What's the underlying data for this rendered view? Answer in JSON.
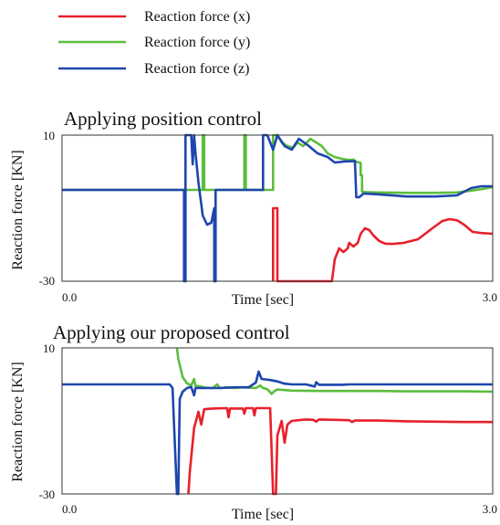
{
  "legend": [
    {
      "label": "Reaction force (x)",
      "color": "#e8202a"
    },
    {
      "label": "Reaction force (y)",
      "color": "#5cbd3c"
    },
    {
      "label": "Reaction force (z)",
      "color": "#1d46ad"
    }
  ],
  "chart_data": [
    {
      "type": "line",
      "title": "Applying position control",
      "xlabel": "Time [sec]",
      "ylabel": "Reaction force [KN]",
      "xlim": [
        0.0,
        3.0
      ],
      "ylim": [
        -30,
        10
      ],
      "xtick_labels": [
        "0.0",
        "3.0"
      ],
      "ytick_labels": [
        "10",
        "-30"
      ],
      "grid": false,
      "series": [
        {
          "name": "Reaction force (x)",
          "color": "#e8202a",
          "points": [
            [
              1.47,
              -30
            ],
            [
              1.47,
              -10
            ],
            [
              1.5,
              -10
            ],
            [
              1.5,
              -30
            ],
            [
              1.88,
              -30
            ],
            [
              1.9,
              -24
            ],
            [
              1.93,
              -21
            ],
            [
              1.96,
              -22
            ],
            [
              1.99,
              -21
            ],
            [
              2.0,
              -19.5
            ],
            [
              2.03,
              -20.5
            ],
            [
              2.06,
              -19.5
            ],
            [
              2.08,
              -17
            ],
            [
              2.11,
              -15.5
            ],
            [
              2.14,
              -16
            ],
            [
              2.17,
              -17.5
            ],
            [
              2.21,
              -19
            ],
            [
              2.25,
              -19.7
            ],
            [
              2.3,
              -19.8
            ],
            [
              2.38,
              -19.5
            ],
            [
              2.48,
              -18.5
            ],
            [
              2.58,
              -15.5
            ],
            [
              2.65,
              -13.5
            ],
            [
              2.7,
              -13
            ],
            [
              2.75,
              -13.3
            ],
            [
              2.8,
              -14.5
            ],
            [
              2.86,
              -16.5
            ],
            [
              2.92,
              -16.8
            ],
            [
              3.0,
              -17
            ]
          ]
        },
        {
          "name": "Reaction force (y)",
          "color": "#5cbd3c",
          "points": [
            [
              0.0,
              -5
            ],
            [
              0.98,
              -5
            ],
            [
              0.98,
              10
            ],
            [
              0.99,
              10
            ],
            [
              0.99,
              -5
            ],
            [
              1.27,
              -5
            ],
            [
              1.27,
              10
            ],
            [
              1.28,
              10
            ],
            [
              1.28,
              -5
            ],
            [
              1.47,
              -5
            ],
            [
              1.47,
              10
            ],
            [
              1.5,
              10
            ],
            [
              1.53,
              8
            ],
            [
              1.57,
              7
            ],
            [
              1.61,
              6.5
            ],
            [
              1.64,
              8
            ],
            [
              1.68,
              7
            ],
            [
              1.73,
              9
            ],
            [
              1.77,
              8
            ],
            [
              1.81,
              7
            ],
            [
              1.85,
              5
            ],
            [
              1.9,
              4
            ],
            [
              1.95,
              3.5
            ],
            [
              2.0,
              3.2
            ],
            [
              2.03,
              3.3
            ],
            [
              2.05,
              2.7
            ],
            [
              2.08,
              2.4
            ],
            [
              2.08,
              -1
            ],
            [
              2.09,
              -1
            ],
            [
              2.09,
              -5.5
            ],
            [
              2.12,
              -5.6
            ],
            [
              2.2,
              -5.7
            ],
            [
              2.4,
              -5.8
            ],
            [
              2.6,
              -5.8
            ],
            [
              2.75,
              -5.7
            ],
            [
              2.85,
              -5.2
            ],
            [
              2.92,
              -4.8
            ],
            [
              3.0,
              -4.2
            ]
          ]
        },
        {
          "name": "Reaction force (z)",
          "color": "#1d46ad",
          "points": [
            [
              0.0,
              -5
            ],
            [
              0.85,
              -5
            ],
            [
              0.85,
              -30
            ],
            [
              0.86,
              -30
            ],
            [
              0.86,
              10
            ],
            [
              0.9,
              10
            ],
            [
              0.91,
              2
            ],
            [
              0.92,
              10
            ],
            [
              0.93,
              5
            ],
            [
              0.95,
              -3
            ],
            [
              0.98,
              -12
            ],
            [
              1.01,
              -14.5
            ],
            [
              1.04,
              -14
            ],
            [
              1.06,
              -10
            ],
            [
              1.06,
              -30
            ],
            [
              1.07,
              -30
            ],
            [
              1.07,
              -5
            ],
            [
              1.4,
              -5
            ],
            [
              1.4,
              10
            ],
            [
              1.43,
              10
            ],
            [
              1.47,
              6
            ],
            [
              1.5,
              10
            ],
            [
              1.55,
              7
            ],
            [
              1.6,
              6
            ],
            [
              1.65,
              9
            ],
            [
              1.72,
              7
            ],
            [
              1.78,
              5
            ],
            [
              1.85,
              4
            ],
            [
              1.9,
              2.5
            ],
            [
              1.97,
              2.8
            ],
            [
              2.04,
              2.9
            ],
            [
              2.05,
              -7
            ],
            [
              2.07,
              -7
            ],
            [
              2.1,
              -6
            ],
            [
              2.2,
              -6.2
            ],
            [
              2.4,
              -6.8
            ],
            [
              2.6,
              -6.8
            ],
            [
              2.75,
              -6.5
            ],
            [
              2.85,
              -4.5
            ],
            [
              2.92,
              -4
            ],
            [
              3.0,
              -4
            ]
          ]
        }
      ]
    },
    {
      "type": "line",
      "title": "Applying our proposed control",
      "xlabel": "Time [sec]",
      "ylabel": "Reaction force [KN]",
      "xlim": [
        0.0,
        3.0
      ],
      "ylim": [
        -30,
        10
      ],
      "xtick_labels": [
        "0.0",
        "3.0"
      ],
      "ytick_labels": [
        "10",
        "-30"
      ],
      "grid": false,
      "series": [
        {
          "name": "Reaction force (x)",
          "color": "#e8202a",
          "points": [
            [
              0.88,
              -30
            ],
            [
              0.89,
              -24
            ],
            [
              0.92,
              -12
            ],
            [
              0.95,
              -7.5
            ],
            [
              0.97,
              -11
            ],
            [
              0.99,
              -6.8
            ],
            [
              1.05,
              -6.6
            ],
            [
              1.15,
              -6.5
            ],
            [
              1.16,
              -9
            ],
            [
              1.17,
              -6.6
            ],
            [
              1.26,
              -6.6
            ],
            [
              1.27,
              -8
            ],
            [
              1.28,
              -6.5
            ],
            [
              1.33,
              -6.5
            ],
            [
              1.34,
              -8.5
            ],
            [
              1.35,
              -6.5
            ],
            [
              1.45,
              -6.5
            ],
            [
              1.47,
              -30
            ],
            [
              1.49,
              -30
            ],
            [
              1.5,
              -14
            ],
            [
              1.53,
              -10
            ],
            [
              1.55,
              -16
            ],
            [
              1.57,
              -11
            ],
            [
              1.6,
              -10
            ],
            [
              1.65,
              -9.8
            ],
            [
              1.7,
              -9.6
            ],
            [
              1.75,
              -9.7
            ],
            [
              1.77,
              -10.2
            ],
            [
              1.79,
              -9.6
            ],
            [
              1.9,
              -9.7
            ],
            [
              2.0,
              -9.8
            ],
            [
              2.02,
              -10.3
            ],
            [
              2.04,
              -9.9
            ],
            [
              2.2,
              -9.9
            ],
            [
              2.4,
              -10.1
            ],
            [
              2.6,
              -10.2
            ],
            [
              2.8,
              -10.3
            ],
            [
              3.0,
              -10.3
            ]
          ]
        },
        {
          "name": "Reaction force (y)",
          "color": "#5cbd3c",
          "points": [
            [
              0.8,
              10
            ],
            [
              0.81,
              7
            ],
            [
              0.84,
              2
            ],
            [
              0.87,
              0.3
            ],
            [
              0.9,
              -0.3
            ],
            [
              0.92,
              1.5
            ],
            [
              0.93,
              -0.4
            ],
            [
              0.97,
              -0.6
            ],
            [
              1.0,
              -0.9
            ],
            [
              1.05,
              -1.0
            ],
            [
              1.08,
              0
            ],
            [
              1.1,
              -1.0
            ],
            [
              1.15,
              -0.8
            ],
            [
              1.2,
              -1.0
            ],
            [
              1.25,
              -0.8
            ],
            [
              1.35,
              -1.0
            ],
            [
              1.38,
              -0.3
            ],
            [
              1.4,
              -1.0
            ],
            [
              1.43,
              -1.3
            ],
            [
              1.46,
              -2.6
            ],
            [
              1.48,
              -1.8
            ],
            [
              1.5,
              -1.4
            ],
            [
              1.6,
              -1.7
            ],
            [
              1.8,
              -1.8
            ],
            [
              2.0,
              -1.8
            ],
            [
              2.2,
              -1.8
            ],
            [
              2.4,
              -1.9
            ],
            [
              2.6,
              -1.9
            ],
            [
              2.8,
              -1.9
            ],
            [
              3.0,
              -2.0
            ]
          ]
        },
        {
          "name": "Reaction force (z)",
          "color": "#1d46ad",
          "points": [
            [
              0.0,
              0
            ],
            [
              0.75,
              0
            ],
            [
              0.77,
              -1
            ],
            [
              0.8,
              -30
            ],
            [
              0.81,
              -30
            ],
            [
              0.82,
              -4
            ],
            [
              0.84,
              -2
            ],
            [
              0.87,
              -1
            ],
            [
              0.9,
              -0.7
            ],
            [
              0.92,
              -3
            ],
            [
              0.93,
              -1
            ],
            [
              1.0,
              -1
            ],
            [
              1.1,
              -1
            ],
            [
              1.2,
              -0.8
            ],
            [
              1.3,
              -0.8
            ],
            [
              1.35,
              0.5
            ],
            [
              1.37,
              3.5
            ],
            [
              1.39,
              1.5
            ],
            [
              1.45,
              1.2
            ],
            [
              1.5,
              0.8
            ],
            [
              1.55,
              0.2
            ],
            [
              1.6,
              0
            ],
            [
              1.7,
              0
            ],
            [
              1.76,
              -0.6
            ],
            [
              1.77,
              0.6
            ],
            [
              1.79,
              -0.1
            ],
            [
              1.95,
              -0.1
            ],
            [
              2.0,
              0
            ],
            [
              2.2,
              0
            ],
            [
              2.5,
              0
            ],
            [
              2.8,
              0
            ],
            [
              3.0,
              0
            ]
          ]
        }
      ]
    }
  ]
}
